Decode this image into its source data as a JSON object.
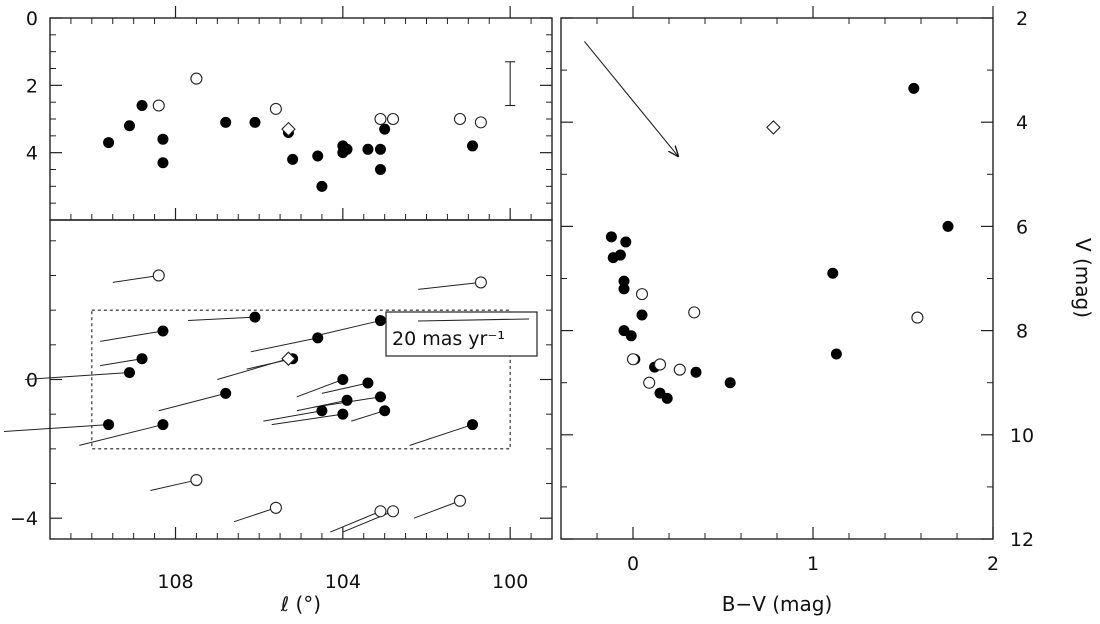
{
  "chart_data": [
    {
      "id": "l_vs_V",
      "type": "scatter",
      "xlabel": "",
      "ylabel": "",
      "xlim": [
        111,
        99
      ],
      "ylim": [
        0,
        6
      ],
      "y_inverted": false,
      "x_ticks": [
        108,
        104,
        100
      ],
      "y_ticks": [
        0,
        2,
        4
      ],
      "y_tick_labels": [
        "0",
        "2",
        "4"
      ],
      "error_bar": {
        "x": 100,
        "y_low": 1.3,
        "y_high": 2.6
      },
      "series": [
        {
          "marker": "filled-circle",
          "points": [
            [
              109.6,
              3.7
            ],
            [
              109.1,
              3.2
            ],
            [
              108.8,
              2.6
            ],
            [
              108.3,
              3.6
            ],
            [
              108.3,
              4.3
            ],
            [
              106.8,
              3.1
            ],
            [
              106.1,
              3.1
            ],
            [
              105.3,
              3.4
            ],
            [
              105.2,
              4.2
            ],
            [
              104.6,
              4.1
            ],
            [
              104.5,
              5.0
            ],
            [
              104.0,
              3.8
            ],
            [
              104.0,
              4.0
            ],
            [
              103.9,
              3.9
            ],
            [
              103.4,
              3.9
            ],
            [
              103.1,
              3.9
            ],
            [
              103.1,
              4.5
            ],
            [
              103.0,
              3.3
            ],
            [
              100.9,
              3.8
            ]
          ]
        },
        {
          "marker": "open-circle",
          "points": [
            [
              108.4,
              2.6
            ],
            [
              107.5,
              1.8
            ],
            [
              105.6,
              2.7
            ],
            [
              103.1,
              3.0
            ],
            [
              102.8,
              3.0
            ],
            [
              101.2,
              3.0
            ],
            [
              100.7,
              3.1
            ]
          ]
        },
        {
          "marker": "open-diamond",
          "points": [
            [
              105.3,
              3.3
            ]
          ]
        }
      ]
    },
    {
      "id": "l_vs_b",
      "type": "scatter",
      "xlabel": "ℓ (°)",
      "ylabel": "",
      "xlim": [
        111,
        99
      ],
      "ylim": [
        -4.6,
        4.6
      ],
      "x_ticks": [
        108,
        104,
        100
      ],
      "x_tick_labels": [
        "108",
        "104",
        "100"
      ],
      "y_ticks": [
        0,
        -4
      ],
      "y_tick_labels": [
        "0",
        "−4"
      ],
      "box": {
        "x": [
          110,
          100
        ],
        "y": [
          -2.0,
          2.0
        ]
      },
      "legend_label": "20 mas yr⁻¹",
      "series": [
        {
          "marker": "filled-circle",
          "points": [
            [
              109.6,
              -1.3,
              -2.5,
              -0.2
            ],
            [
              109.1,
              0.2,
              -2.5,
              -0.2
            ],
            [
              108.8,
              0.6,
              -1.0,
              -0.2
            ],
            [
              108.3,
              1.4,
              -1.5,
              -0.3
            ],
            [
              108.3,
              -1.3,
              -2.0,
              -0.6
            ],
            [
              106.8,
              -0.4,
              -1.6,
              -0.5
            ],
            [
              106.1,
              1.8,
              -1.6,
              -0.1
            ],
            [
              105.2,
              0.6,
              -1.1,
              -0.3
            ],
            [
              104.6,
              1.2,
              -1.6,
              -0.4
            ],
            [
              104.0,
              0.0,
              -1.1,
              -0.5
            ],
            [
              104.5,
              -0.9,
              -1.4,
              -0.3
            ],
            [
              104.0,
              -1.0,
              -1.7,
              -0.3
            ],
            [
              103.9,
              -0.6,
              -1.2,
              -0.3
            ],
            [
              103.4,
              -0.1,
              -1.1,
              -0.3
            ],
            [
              103.1,
              -0.5,
              -1.6,
              -0.3
            ],
            [
              103.1,
              1.7,
              -1.4,
              -0.4
            ],
            [
              103.0,
              -0.9,
              -0.8,
              -0.3
            ],
            [
              100.9,
              -1.3,
              -1.5,
              -0.6
            ]
          ]
        },
        {
          "marker": "open-circle",
          "points": [
            [
              108.4,
              3.0,
              -1.1,
              -0.2
            ],
            [
              107.5,
              -2.9,
              -1.1,
              -0.3
            ],
            [
              105.6,
              -3.7,
              -1.0,
              -0.4
            ],
            [
              103.1,
              -3.8,
              -1.2,
              -0.6
            ],
            [
              102.8,
              -3.8,
              -1.2,
              -0.6
            ],
            [
              101.2,
              -3.5,
              -1.1,
              -0.5
            ],
            [
              100.7,
              2.8,
              -1.5,
              -0.2
            ]
          ]
        },
        {
          "marker": "open-diamond",
          "points": [
            [
              105.3,
              0.6,
              -1.7,
              -0.6
            ]
          ]
        }
      ]
    },
    {
      "id": "cmd",
      "type": "scatter",
      "xlabel": "B−V (mag)",
      "ylabel": "V (mag)",
      "xlim": [
        -0.4,
        2.0
      ],
      "ylim": [
        12,
        2
      ],
      "x_ticks": [
        0,
        1,
        2
      ],
      "x_tick_labels": [
        "0",
        "1",
        "2"
      ],
      "y_ticks": [
        2,
        4,
        6,
        8,
        10,
        12
      ],
      "y_tick_labels": [
        "2",
        "4",
        "6",
        "8",
        "10",
        "12"
      ],
      "arrow": {
        "from": [
          -0.27,
          2.45
        ],
        "to": [
          0.25,
          4.65
        ]
      },
      "series": [
        {
          "marker": "filled-circle",
          "points": [
            [
              -0.12,
              6.2
            ],
            [
              -0.11,
              6.6
            ],
            [
              -0.07,
              6.55
            ],
            [
              -0.04,
              6.3
            ],
            [
              -0.05,
              7.05
            ],
            [
              -0.05,
              7.2
            ],
            [
              -0.05,
              8.0
            ],
            [
              -0.01,
              8.1
            ],
            [
              0.01,
              8.55
            ],
            [
              0.05,
              7.7
            ],
            [
              0.12,
              8.7
            ],
            [
              0.15,
              9.2
            ],
            [
              0.19,
              9.3
            ],
            [
              0.35,
              8.8
            ],
            [
              0.54,
              9.0
            ],
            [
              1.11,
              6.9
            ],
            [
              1.13,
              8.45
            ],
            [
              1.56,
              3.35
            ],
            [
              1.75,
              6.0
            ]
          ]
        },
        {
          "marker": "open-circle",
          "points": [
            [
              0.0,
              8.55
            ],
            [
              0.05,
              7.3
            ],
            [
              0.09,
              9.0
            ],
            [
              0.15,
              8.65
            ],
            [
              0.26,
              8.75
            ],
            [
              0.34,
              7.65
            ],
            [
              1.58,
              7.75
            ]
          ]
        },
        {
          "marker": "open-diamond",
          "points": [
            [
              0.78,
              4.1
            ]
          ]
        }
      ]
    }
  ]
}
